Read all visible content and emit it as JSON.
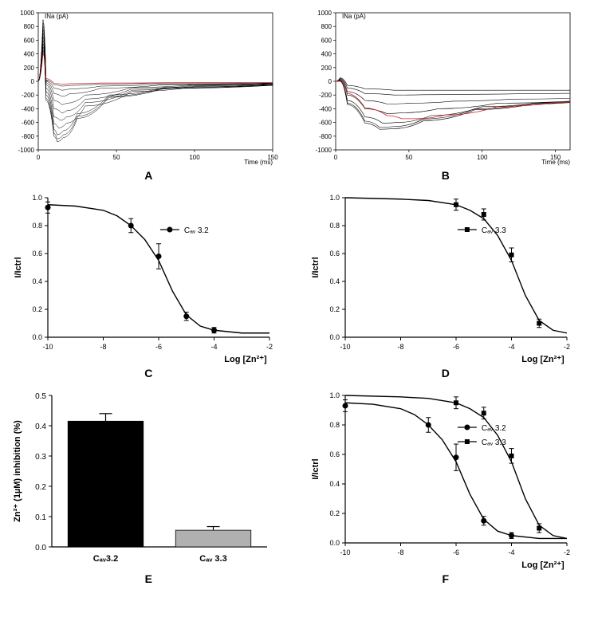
{
  "panelA": {
    "type": "line-traces",
    "ylabel": "INa (pA)",
    "xlabel": "Time (ms)",
    "ylim": [
      -1000,
      1000
    ],
    "yticks": [
      -1000,
      -800,
      -600,
      -400,
      -200,
      0,
      200,
      400,
      600,
      800,
      1000
    ],
    "xlim": [
      0,
      150
    ],
    "xticks": [
      0,
      50,
      100,
      150
    ],
    "label_fontsize": 9,
    "tick_fontsize": 8,
    "traces": [
      {
        "color": "#000000",
        "width": 0.5,
        "points": [
          [
            0,
            0
          ],
          [
            3,
            900
          ],
          [
            5,
            20
          ],
          [
            10,
            -50
          ],
          [
            15,
            -70
          ],
          [
            20,
            -60
          ],
          [
            40,
            -40
          ],
          [
            80,
            -25
          ],
          [
            150,
            -20
          ]
        ]
      },
      {
        "color": "#000000",
        "width": 0.5,
        "points": [
          [
            0,
            0
          ],
          [
            3,
            850
          ],
          [
            5,
            10
          ],
          [
            10,
            -100
          ],
          [
            15,
            -130
          ],
          [
            20,
            -110
          ],
          [
            40,
            -70
          ],
          [
            80,
            -40
          ],
          [
            150,
            -25
          ]
        ]
      },
      {
        "color": "#000000",
        "width": 0.5,
        "points": [
          [
            0,
            0
          ],
          [
            3,
            800
          ],
          [
            5,
            0
          ],
          [
            10,
            -180
          ],
          [
            15,
            -220
          ],
          [
            20,
            -180
          ],
          [
            40,
            -100
          ],
          [
            80,
            -50
          ],
          [
            150,
            -30
          ]
        ]
      },
      {
        "color": "#000000",
        "width": 0.5,
        "points": [
          [
            0,
            0
          ],
          [
            3,
            750
          ],
          [
            5,
            -20
          ],
          [
            10,
            -280
          ],
          [
            15,
            -340
          ],
          [
            18,
            -320
          ],
          [
            30,
            -200
          ],
          [
            60,
            -90
          ],
          [
            100,
            -50
          ],
          [
            150,
            -35
          ]
        ]
      },
      {
        "color": "#000000",
        "width": 0.5,
        "points": [
          [
            0,
            0
          ],
          [
            3,
            700
          ],
          [
            5,
            -50
          ],
          [
            10,
            -400
          ],
          [
            15,
            -460
          ],
          [
            18,
            -430
          ],
          [
            30,
            -260
          ],
          [
            60,
            -110
          ],
          [
            100,
            -60
          ],
          [
            150,
            -40
          ]
        ]
      },
      {
        "color": "#000000",
        "width": 0.5,
        "points": [
          [
            0,
            0
          ],
          [
            3,
            650
          ],
          [
            5,
            -100
          ],
          [
            10,
            -520
          ],
          [
            14,
            -570
          ],
          [
            18,
            -520
          ],
          [
            30,
            -310
          ],
          [
            60,
            -130
          ],
          [
            100,
            -70
          ],
          [
            150,
            -45
          ]
        ]
      },
      {
        "color": "#000000",
        "width": 0.5,
        "points": [
          [
            0,
            0
          ],
          [
            3,
            600
          ],
          [
            5,
            -150
          ],
          [
            10,
            -620
          ],
          [
            13,
            -680
          ],
          [
            18,
            -610
          ],
          [
            30,
            -360
          ],
          [
            60,
            -150
          ],
          [
            100,
            -80
          ],
          [
            150,
            -50
          ]
        ]
      },
      {
        "color": "#000000",
        "width": 0.5,
        "points": [
          [
            0,
            0
          ],
          [
            3,
            550
          ],
          [
            5,
            -200
          ],
          [
            10,
            -700
          ],
          [
            12,
            -780
          ],
          [
            16,
            -720
          ],
          [
            25,
            -470
          ],
          [
            45,
            -200
          ],
          [
            80,
            -90
          ],
          [
            150,
            -55
          ]
        ]
      },
      {
        "color": "#000000",
        "width": 0.5,
        "points": [
          [
            0,
            0
          ],
          [
            3,
            500
          ],
          [
            5,
            -250
          ],
          [
            10,
            -760
          ],
          [
            12,
            -840
          ],
          [
            16,
            -780
          ],
          [
            25,
            -510
          ],
          [
            45,
            -220
          ],
          [
            80,
            -100
          ],
          [
            150,
            -58
          ]
        ]
      },
      {
        "color": "#000000",
        "width": 0.5,
        "points": [
          [
            0,
            0
          ],
          [
            3,
            450
          ],
          [
            5,
            -280
          ],
          [
            10,
            -800
          ],
          [
            12,
            -880
          ],
          [
            16,
            -820
          ],
          [
            25,
            -540
          ],
          [
            45,
            -235
          ],
          [
            80,
            -105
          ],
          [
            150,
            -60
          ]
        ]
      },
      {
        "color": "#cc2222",
        "width": 0.7,
        "points": [
          [
            0,
            0
          ],
          [
            3,
            400
          ],
          [
            5,
            40
          ],
          [
            10,
            -30
          ],
          [
            15,
            -40
          ],
          [
            20,
            -35
          ],
          [
            40,
            -25
          ],
          [
            80,
            -20
          ],
          [
            150,
            -18
          ]
        ]
      }
    ],
    "label": "A"
  },
  "panelB": {
    "type": "line-traces",
    "ylabel": "INa (pA)",
    "xlabel": "Time (ms)",
    "ylim": [
      -1000,
      1000
    ],
    "yticks": [
      -1000,
      -800,
      -600,
      -400,
      -200,
      0,
      200,
      400,
      600,
      800,
      1000
    ],
    "xlim": [
      0,
      160
    ],
    "xticks": [
      0,
      50,
      100,
      150
    ],
    "label_fontsize": 9,
    "tick_fontsize": 8,
    "traces": [
      {
        "color": "#000000",
        "width": 0.6,
        "points": [
          [
            0,
            0
          ],
          [
            3,
            50
          ],
          [
            8,
            -60
          ],
          [
            20,
            -110
          ],
          [
            40,
            -130
          ],
          [
            60,
            -130
          ],
          [
            90,
            -130
          ],
          [
            130,
            -130
          ],
          [
            160,
            -130
          ]
        ]
      },
      {
        "color": "#000000",
        "width": 0.6,
        "points": [
          [
            0,
            0
          ],
          [
            3,
            40
          ],
          [
            8,
            -100
          ],
          [
            20,
            -180
          ],
          [
            40,
            -200
          ],
          [
            60,
            -195
          ],
          [
            90,
            -190
          ],
          [
            130,
            -180
          ],
          [
            160,
            -175
          ]
        ]
      },
      {
        "color": "#000000",
        "width": 0.6,
        "points": [
          [
            0,
            0
          ],
          [
            3,
            30
          ],
          [
            8,
            -150
          ],
          [
            20,
            -280
          ],
          [
            35,
            -330
          ],
          [
            50,
            -320
          ],
          [
            80,
            -290
          ],
          [
            120,
            -260
          ],
          [
            160,
            -250
          ]
        ]
      },
      {
        "color": "#000000",
        "width": 0.6,
        "points": [
          [
            0,
            0
          ],
          [
            3,
            20
          ],
          [
            8,
            -200
          ],
          [
            20,
            -400
          ],
          [
            35,
            -470
          ],
          [
            45,
            -460
          ],
          [
            70,
            -400
          ],
          [
            110,
            -320
          ],
          [
            160,
            -290
          ]
        ]
      },
      {
        "color": "#000000",
        "width": 0.6,
        "points": [
          [
            0,
            0
          ],
          [
            3,
            10
          ],
          [
            8,
            -280
          ],
          [
            20,
            -520
          ],
          [
            32,
            -610
          ],
          [
            42,
            -600
          ],
          [
            65,
            -500
          ],
          [
            100,
            -370
          ],
          [
            140,
            -310
          ],
          [
            160,
            -300
          ]
        ]
      },
      {
        "color": "#000000",
        "width": 0.6,
        "points": [
          [
            0,
            0
          ],
          [
            3,
            5
          ],
          [
            8,
            -320
          ],
          [
            20,
            -580
          ],
          [
            30,
            -670
          ],
          [
            40,
            -660
          ],
          [
            60,
            -550
          ],
          [
            95,
            -400
          ],
          [
            135,
            -320
          ],
          [
            160,
            -305
          ]
        ]
      },
      {
        "color": "#000000",
        "width": 0.6,
        "points": [
          [
            0,
            0
          ],
          [
            3,
            0
          ],
          [
            8,
            -340
          ],
          [
            20,
            -610
          ],
          [
            30,
            -700
          ],
          [
            40,
            -690
          ],
          [
            60,
            -575
          ],
          [
            95,
            -415
          ],
          [
            135,
            -330
          ],
          [
            160,
            -310
          ]
        ]
      },
      {
        "color": "#cc2222",
        "width": 0.8,
        "points": [
          [
            0,
            0
          ],
          [
            3,
            15
          ],
          [
            8,
            -180
          ],
          [
            20,
            -390
          ],
          [
            35,
            -500
          ],
          [
            45,
            -545
          ],
          [
            55,
            -545
          ],
          [
            75,
            -490
          ],
          [
            110,
            -370
          ],
          [
            150,
            -310
          ],
          [
            160,
            -305
          ]
        ]
      }
    ],
    "label": "B"
  },
  "panelC": {
    "type": "dose-response",
    "ylabel": "I/Ictrl",
    "xlabel": "Log [Zn²⁺]",
    "xlim": [
      -10,
      -2
    ],
    "xticks": [
      -10,
      -8,
      -6,
      -4,
      -2
    ],
    "ylim": [
      0.0,
      1.0
    ],
    "yticks": [
      0.0,
      0.2,
      0.4,
      0.6,
      0.8,
      1.0
    ],
    "legend": "Cₐᵥ 3.2",
    "marker": "circle",
    "curve_color": "#000000",
    "points": [
      {
        "x": -10,
        "y": 0.93,
        "err": 0.04
      },
      {
        "x": -7,
        "y": 0.8,
        "err": 0.05
      },
      {
        "x": -6,
        "y": 0.58,
        "err": 0.09
      },
      {
        "x": -5,
        "y": 0.15,
        "err": 0.03
      },
      {
        "x": -4,
        "y": 0.05,
        "err": 0.02
      }
    ],
    "curve": [
      [
        -10,
        0.95
      ],
      [
        -9,
        0.94
      ],
      [
        -8,
        0.91
      ],
      [
        -7.5,
        0.87
      ],
      [
        -7,
        0.8
      ],
      [
        -6.5,
        0.7
      ],
      [
        -6,
        0.55
      ],
      [
        -5.5,
        0.33
      ],
      [
        -5,
        0.16
      ],
      [
        -4.5,
        0.08
      ],
      [
        -4,
        0.05
      ],
      [
        -3,
        0.03
      ],
      [
        -2,
        0.03
      ]
    ],
    "label_fontsize": 11,
    "tick_fontsize": 9,
    "label": "C"
  },
  "panelD": {
    "type": "dose-response",
    "ylabel": "I/Ictrl",
    "xlabel": "Log [Zn²⁺]",
    "xlim": [
      -10,
      -2
    ],
    "xticks": [
      -10,
      -8,
      -6,
      -4,
      -2
    ],
    "ylim": [
      0.0,
      1.0
    ],
    "yticks": [
      0.0,
      0.2,
      0.4,
      0.6,
      0.8,
      1.0
    ],
    "legend": "Cₐᵥ 3.3",
    "marker": "square",
    "curve_color": "#000000",
    "points": [
      {
        "x": -6,
        "y": 0.95,
        "err": 0.04
      },
      {
        "x": -5,
        "y": 0.88,
        "err": 0.04
      },
      {
        "x": -4,
        "y": 0.59,
        "err": 0.05
      },
      {
        "x": -3,
        "y": 0.1,
        "err": 0.03
      }
    ],
    "curve": [
      [
        -10,
        1.0
      ],
      [
        -8,
        0.99
      ],
      [
        -7,
        0.98
      ],
      [
        -6,
        0.95
      ],
      [
        -5.5,
        0.91
      ],
      [
        -5,
        0.85
      ],
      [
        -4.5,
        0.73
      ],
      [
        -4,
        0.55
      ],
      [
        -3.5,
        0.3
      ],
      [
        -3,
        0.12
      ],
      [
        -2.5,
        0.05
      ],
      [
        -2,
        0.03
      ]
    ],
    "label_fontsize": 11,
    "tick_fontsize": 9,
    "label": "D"
  },
  "panelE": {
    "type": "bar",
    "ylabel": "Zn²⁺ (1µM) inhibition (%)",
    "ylim": [
      0.0,
      0.5
    ],
    "yticks": [
      0.0,
      0.1,
      0.2,
      0.3,
      0.4,
      0.5
    ],
    "categories": [
      "Cₐᵥ3.2",
      "Cₐᵥ 3.3"
    ],
    "values": [
      0.415,
      0.055
    ],
    "errors": [
      0.025,
      0.012
    ],
    "bar_colors": [
      "#000000",
      "#b0b0b0"
    ],
    "bar_width": 0.7,
    "label_fontsize": 11,
    "tick_fontsize": 10,
    "label": "E"
  },
  "panelF": {
    "type": "dose-response-dual",
    "ylabel": "I/Ictrl",
    "xlabel": "Log [Zn²⁺]",
    "xlim": [
      -10,
      -2
    ],
    "xticks": [
      -10,
      -8,
      -6,
      -4,
      -2
    ],
    "ylim": [
      0.0,
      1.0
    ],
    "yticks": [
      0.0,
      0.2,
      0.4,
      0.6,
      0.8,
      1.0
    ],
    "series": [
      {
        "legend": "Cₐᵥ 3.2",
        "marker": "circle",
        "color": "#000000",
        "points": [
          {
            "x": -10,
            "y": 0.93,
            "err": 0.04
          },
          {
            "x": -7,
            "y": 0.8,
            "err": 0.05
          },
          {
            "x": -6,
            "y": 0.58,
            "err": 0.09
          },
          {
            "x": -5,
            "y": 0.15,
            "err": 0.03
          },
          {
            "x": -4,
            "y": 0.05,
            "err": 0.02
          }
        ],
        "curve": [
          [
            -10,
            0.95
          ],
          [
            -9,
            0.94
          ],
          [
            -8,
            0.91
          ],
          [
            -7.5,
            0.87
          ],
          [
            -7,
            0.8
          ],
          [
            -6.5,
            0.7
          ],
          [
            -6,
            0.55
          ],
          [
            -5.5,
            0.33
          ],
          [
            -5,
            0.16
          ],
          [
            -4.5,
            0.08
          ],
          [
            -4,
            0.05
          ],
          [
            -3,
            0.03
          ],
          [
            -2,
            0.03
          ]
        ]
      },
      {
        "legend": "Cₐᵥ 3.3",
        "marker": "square",
        "color": "#000000",
        "points": [
          {
            "x": -6,
            "y": 0.95,
            "err": 0.04
          },
          {
            "x": -5,
            "y": 0.88,
            "err": 0.04
          },
          {
            "x": -4,
            "y": 0.59,
            "err": 0.05
          },
          {
            "x": -3,
            "y": 0.1,
            "err": 0.03
          }
        ],
        "curve": [
          [
            -10,
            1.0
          ],
          [
            -8,
            0.99
          ],
          [
            -7,
            0.98
          ],
          [
            -6,
            0.95
          ],
          [
            -5.5,
            0.91
          ],
          [
            -5,
            0.85
          ],
          [
            -4.5,
            0.73
          ],
          [
            -4,
            0.55
          ],
          [
            -3.5,
            0.3
          ],
          [
            -3,
            0.12
          ],
          [
            -2.5,
            0.05
          ],
          [
            -2,
            0.03
          ]
        ]
      }
    ],
    "label_fontsize": 11,
    "tick_fontsize": 9,
    "label": "F"
  }
}
